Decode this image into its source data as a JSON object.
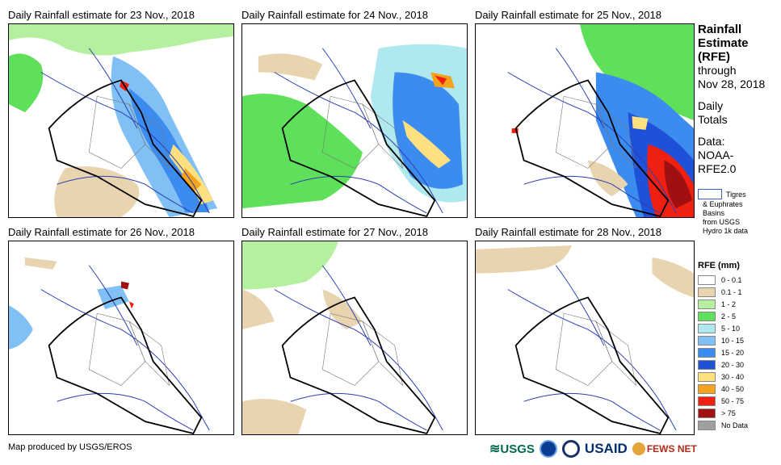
{
  "panels": [
    {
      "title": "Daily Rainfall estimate for 23 Nov., 2018"
    },
    {
      "title": "Daily Rainfall estimate for 24 Nov., 2018"
    },
    {
      "title": "Daily Rainfall estimate for 25 Nov., 2018"
    },
    {
      "title": "Daily Rainfall estimate for 26 Nov., 2018"
    },
    {
      "title": "Daily Rainfall estimate for 27 Nov., 2018"
    },
    {
      "title": "Daily Rainfall estimate for 28 Nov., 2018"
    }
  ],
  "sidebar": {
    "heading_lines": [
      "Rainfall",
      "Estimate",
      "(RFE)"
    ],
    "through_lines": [
      "through",
      "Nov 28, 2018"
    ],
    "daily_lines": [
      "Daily",
      "Totals"
    ],
    "data_lines": [
      "Data:",
      "NOAA-",
      "RFE2.0"
    ]
  },
  "basin_note": {
    "line1": "Tigres",
    "rest": [
      "& Euphrates",
      "Basins",
      "from USGS",
      "Hydro 1k data"
    ]
  },
  "legend": {
    "title": "RFE (mm)",
    "items": [
      {
        "label": "0 - 0.1",
        "color": "#ffffff"
      },
      {
        "label": "0.1 - 1",
        "color": "#e8d5b0"
      },
      {
        "label": "1 - 2",
        "color": "#b4f0a0"
      },
      {
        "label": "2 - 5",
        "color": "#5ee05a"
      },
      {
        "label": "5 - 10",
        "color": "#b0e8f0"
      },
      {
        "label": "10 - 15",
        "color": "#80c0f5"
      },
      {
        "label": "15 - 20",
        "color": "#3c8cf0"
      },
      {
        "label": "20 - 30",
        "color": "#1f50d8"
      },
      {
        "label": "30 - 40",
        "color": "#ffe080"
      },
      {
        "label": "40 - 50",
        "color": "#f5a21c"
      },
      {
        "label": "50 - 75",
        "color": "#f02010"
      },
      {
        "label": "> 75",
        "color": "#a01010"
      },
      {
        "label": "No Data",
        "color": "#a0a0a0"
      }
    ]
  },
  "credit": "Map produced by USGS/EROS",
  "logos": {
    "usgs": "USGS",
    "usaid": "USAID",
    "fewsnet": "FEWS NET"
  }
}
